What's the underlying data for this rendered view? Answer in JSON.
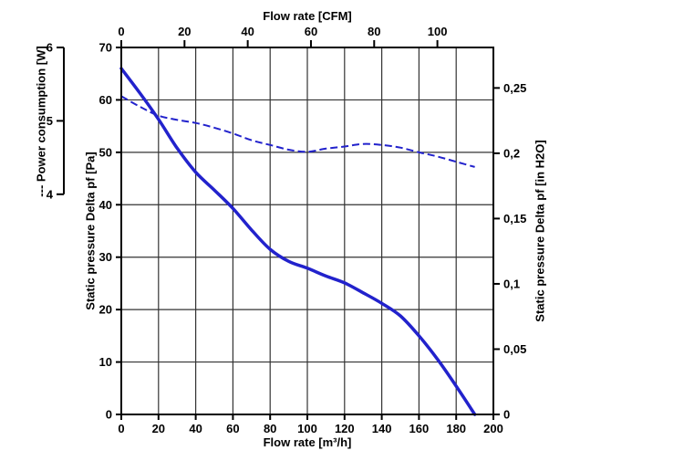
{
  "chart_data": {
    "type": "line",
    "grid": true,
    "background": "#ffffff",
    "curve_color": "#2222cc",
    "grid_color": "#333333",
    "axis_color": "#000000",
    "bottom_axis": {
      "label": "Flow rate [m³/h]",
      "range": [
        0,
        200
      ],
      "ticks": [
        0,
        20,
        40,
        60,
        80,
        100,
        120,
        140,
        160,
        180,
        200
      ]
    },
    "top_axis": {
      "label": "Flow rate [CFM]",
      "ticks": [
        0,
        20,
        40,
        60,
        80,
        100
      ],
      "m3h_per_cfm": 1.699
    },
    "left_axis": {
      "label": "Static pressure Delta pf [Pa]",
      "range": [
        0,
        70
      ],
      "ticks": [
        0,
        10,
        20,
        30,
        40,
        50,
        60,
        70
      ]
    },
    "right_axis": {
      "label": "Static pressure Delta pf [in H2O]",
      "ticks": [
        0,
        0.05,
        0.1,
        0.15,
        0.2,
        0.25
      ],
      "tick_labels": [
        "0",
        "0,05",
        "0,1",
        "0,15",
        "0,2",
        "0,25"
      ],
      "pa_per_in_h2o": 249.1
    },
    "power_axis": {
      "label": "--- Power consumption [W]",
      "ticks": [
        4,
        5,
        6
      ],
      "pa_equiv": [
        42,
        56,
        70
      ]
    },
    "series": [
      {
        "name": "Static pressure Delta pf",
        "style": "solid",
        "unit": "Pa",
        "x_unit": "m³/h",
        "points": [
          [
            0,
            66
          ],
          [
            10,
            61.3
          ],
          [
            20,
            56.3
          ],
          [
            30,
            50.8
          ],
          [
            40,
            46.2
          ],
          [
            50,
            42.8
          ],
          [
            60,
            39.3
          ],
          [
            70,
            35.2
          ],
          [
            80,
            31.5
          ],
          [
            90,
            29.2
          ],
          [
            100,
            27.9
          ],
          [
            110,
            26.4
          ],
          [
            120,
            25.1
          ],
          [
            130,
            23.2
          ],
          [
            140,
            21.2
          ],
          [
            150,
            18.8
          ],
          [
            160,
            15
          ],
          [
            170,
            10.5
          ],
          [
            180,
            5.4
          ],
          [
            190,
            0
          ]
        ]
      },
      {
        "name": "Power consumption",
        "style": "dashed",
        "unit": "W",
        "x_unit": "m³/h",
        "points_pa_equiv": [
          [
            0,
            60.7
          ],
          [
            10,
            58.7
          ],
          [
            20,
            57
          ],
          [
            30,
            56.2
          ],
          [
            40,
            55.6
          ],
          [
            50,
            54.7
          ],
          [
            60,
            53.6
          ],
          [
            70,
            52.3
          ],
          [
            80,
            51.4
          ],
          [
            90,
            50.5
          ],
          [
            100,
            50.1
          ],
          [
            110,
            50.7
          ],
          [
            120,
            51.1
          ],
          [
            130,
            51.6
          ],
          [
            140,
            51.4
          ],
          [
            150,
            50.9
          ],
          [
            160,
            50
          ],
          [
            170,
            49.2
          ],
          [
            180,
            48.2
          ],
          [
            190,
            47.2
          ]
        ],
        "points_w": [
          [
            0,
            5.34
          ],
          [
            10,
            5.19
          ],
          [
            20,
            5.07
          ],
          [
            30,
            5.01
          ],
          [
            40,
            4.97
          ],
          [
            50,
            4.91
          ],
          [
            60,
            4.83
          ],
          [
            70,
            4.74
          ],
          [
            80,
            4.67
          ],
          [
            90,
            4.61
          ],
          [
            100,
            4.58
          ],
          [
            110,
            4.62
          ],
          [
            120,
            4.65
          ],
          [
            130,
            4.69
          ],
          [
            140,
            4.67
          ],
          [
            150,
            4.64
          ],
          [
            160,
            4.57
          ],
          [
            170,
            4.51
          ],
          [
            180,
            4.44
          ],
          [
            190,
            4.37
          ]
        ]
      }
    ]
  }
}
